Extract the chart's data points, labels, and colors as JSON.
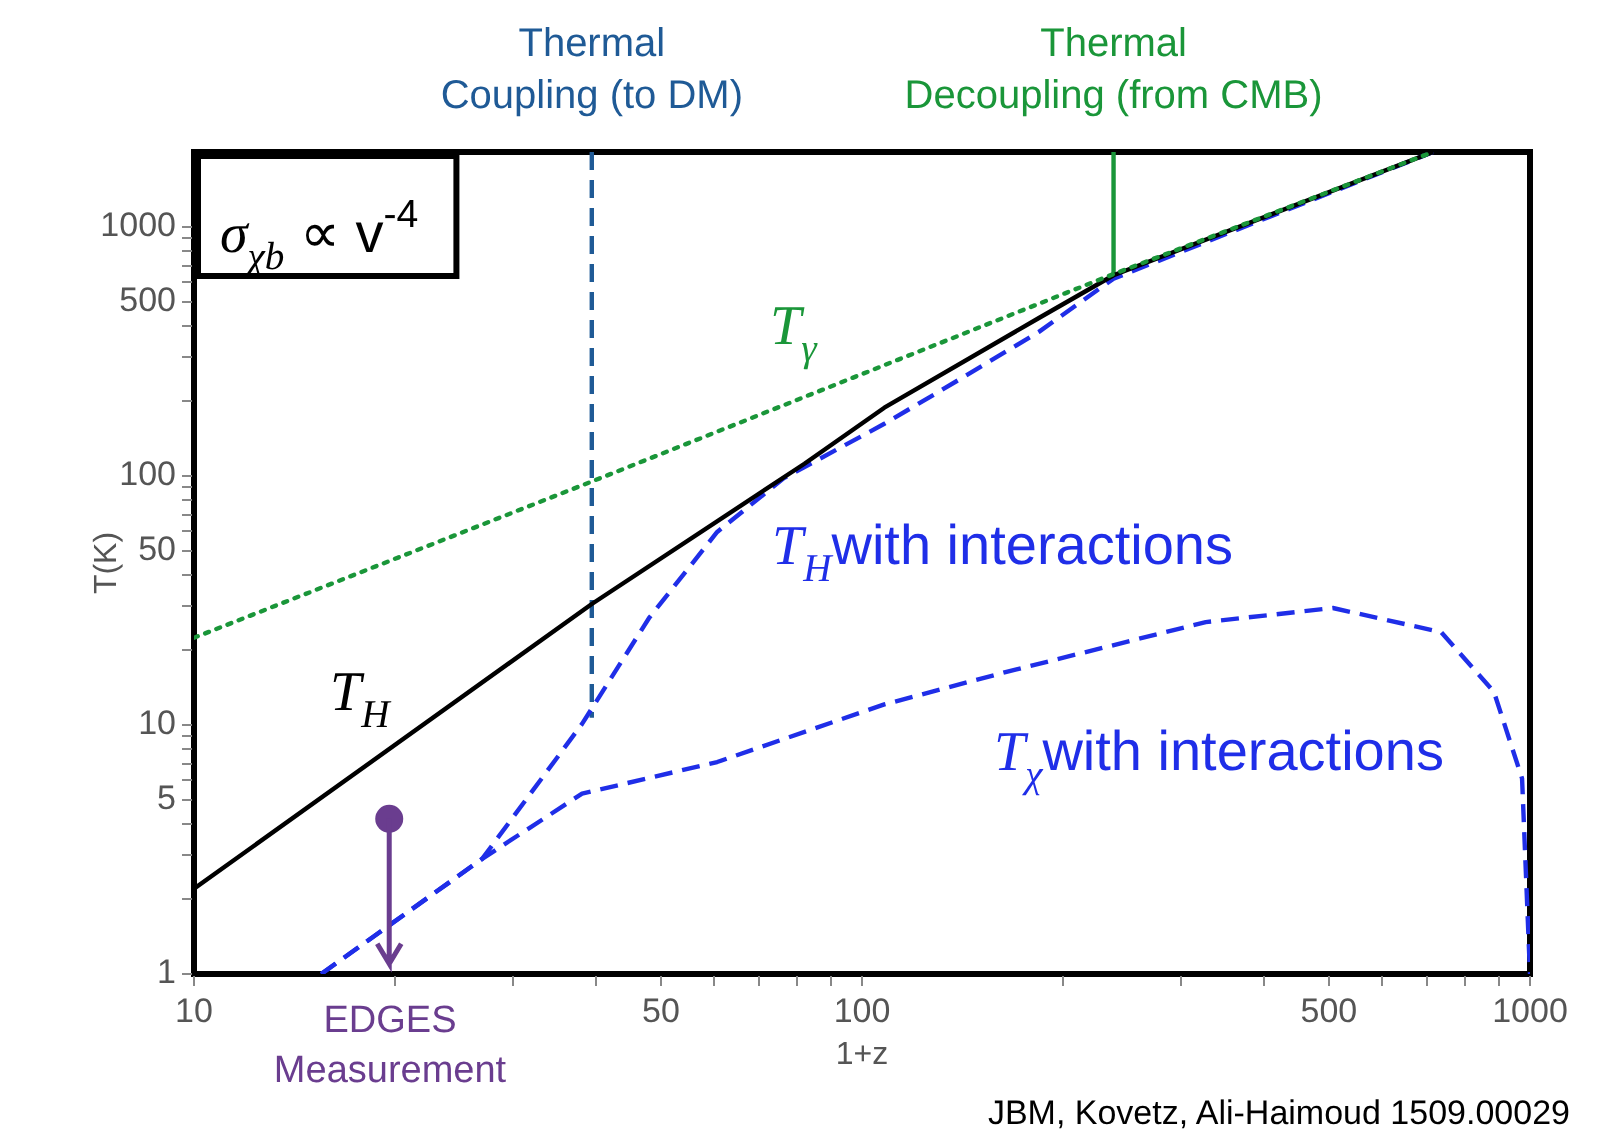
{
  "chart_data": {
    "type": "line",
    "xlabel": "1+z",
    "ylabel": "T(K)",
    "log": "xy",
    "grid": false,
    "legend": false,
    "xlim": [
      10,
      1000
    ],
    "ylim": [
      1,
      2000
    ],
    "xticks": [
      10,
      {
        "value": 20,
        "label": null
      },
      {
        "value": 30,
        "label": null
      },
      {
        "value": 40,
        "label": null
      },
      50,
      {
        "value": 60,
        "label": null
      },
      {
        "value": 70,
        "label": null
      },
      {
        "value": 80,
        "label": null
      },
      {
        "value": 90,
        "label": null
      },
      100,
      {
        "value": 200,
        "label": null
      },
      {
        "value": 300,
        "label": null
      },
      {
        "value": 400,
        "label": null
      },
      500,
      {
        "value": 600,
        "label": null
      },
      {
        "value": 700,
        "label": null
      },
      {
        "value": 800,
        "label": null
      },
      {
        "value": 900,
        "label": null
      },
      1000
    ],
    "yticks": [
      1,
      {
        "value": 2,
        "label": null
      },
      {
        "value": 3,
        "label": null
      },
      {
        "value": 4,
        "label": null
      },
      5,
      {
        "value": 6,
        "label": null
      },
      {
        "value": 7,
        "label": null
      },
      {
        "value": 8,
        "label": null
      },
      {
        "value": 9,
        "label": null
      },
      10,
      {
        "value": 20,
        "label": null
      },
      {
        "value": 30,
        "label": null
      },
      {
        "value": 40,
        "label": null
      },
      50,
      {
        "value": 60,
        "label": null
      },
      {
        "value": 70,
        "label": null
      },
      {
        "value": 80,
        "label": null
      },
      {
        "value": 90,
        "label": null
      },
      100,
      {
        "value": 200,
        "label": null
      },
      {
        "value": 300,
        "label": null
      },
      {
        "value": 400,
        "label": null
      },
      500,
      {
        "value": 600,
        "label": null
      },
      {
        "value": 700,
        "label": null
      },
      {
        "value": 800,
        "label": null
      },
      {
        "value": 900,
        "label": null
      },
      1000
    ],
    "series": [
      {
        "name": "T$_{γ}$",
        "color": "#1a9639",
        "line_style": "dotted",
        "marker": "none",
        "x": [
          10,
          39.4,
          238,
          716
        ],
        "values": [
          22.4,
          95,
          647,
          2000
        ]
      },
      {
        "name": "T$_{H}$",
        "color": "#000000",
        "line_style": "solid",
        "marker": "none",
        "x": [
          10,
          39.4,
          82,
          108,
          184,
          238,
          716
        ],
        "values": [
          2.2,
          30.6,
          112,
          188,
          431,
          640,
          2000
        ]
      },
      {
        "name": "T$_{H}$with interactions",
        "color": "#1f2ee8",
        "line_style": "dashed",
        "marker": "none",
        "x": [
          15.5,
          27,
          38.1,
          48,
          60.7,
          76.4,
          108,
          130,
          184,
          238,
          716
        ],
        "values": [
          1,
          2.9,
          10.1,
          26.9,
          59.6,
          98,
          162,
          217,
          379,
          620,
          2000
        ]
      },
      {
        "name": "T$_{χ}$with interactions",
        "color": "#1f2ee8",
        "line_style": "dashed",
        "marker": "none",
        "x": [
          15.5,
          27,
          38.1,
          60.7,
          108,
          164,
          327,
          507,
          736,
          883,
          973,
          1000
        ],
        "values": [
          1,
          2.9,
          5.3,
          7.1,
          12.1,
          16.3,
          25.9,
          29.5,
          23.6,
          13.6,
          6.1,
          1
        ]
      },
      {
        "color": "#1f5a96",
        "line_style": "dashed",
        "marker": "none",
        "x": [
          39.4,
          39.4
        ],
        "values": [
          2000,
          10.7
        ]
      },
      {
        "color": "#1a9639",
        "line_style": "solid",
        "marker": "none",
        "x": [
          238,
          238
        ],
        "values": [
          2000,
          647
        ]
      },
      {
        "type": "scatter",
        "color": "#6a3d8f",
        "marker": "circle",
        "x": [
          19.6
        ],
        "values": [
          4.2
        ],
        "errors": [
          [
            1.1,
            4.2
          ]
        ]
      }
    ],
    "annotations": [
      "σ$_{χb}$ ∝ v$^{-4}$",
      "JBM, Kovetz, Ali-Haimoud 1509.00029",
      {
        "text": "Thermal Coupling (to DM)",
        "x": 39.4,
        "y": 2000
      },
      {
        "text": "Thermal Decoupling (from CMB)",
        "x": 238,
        "y": 2000
      },
      "EDGES Measurement"
    ]
  }
}
